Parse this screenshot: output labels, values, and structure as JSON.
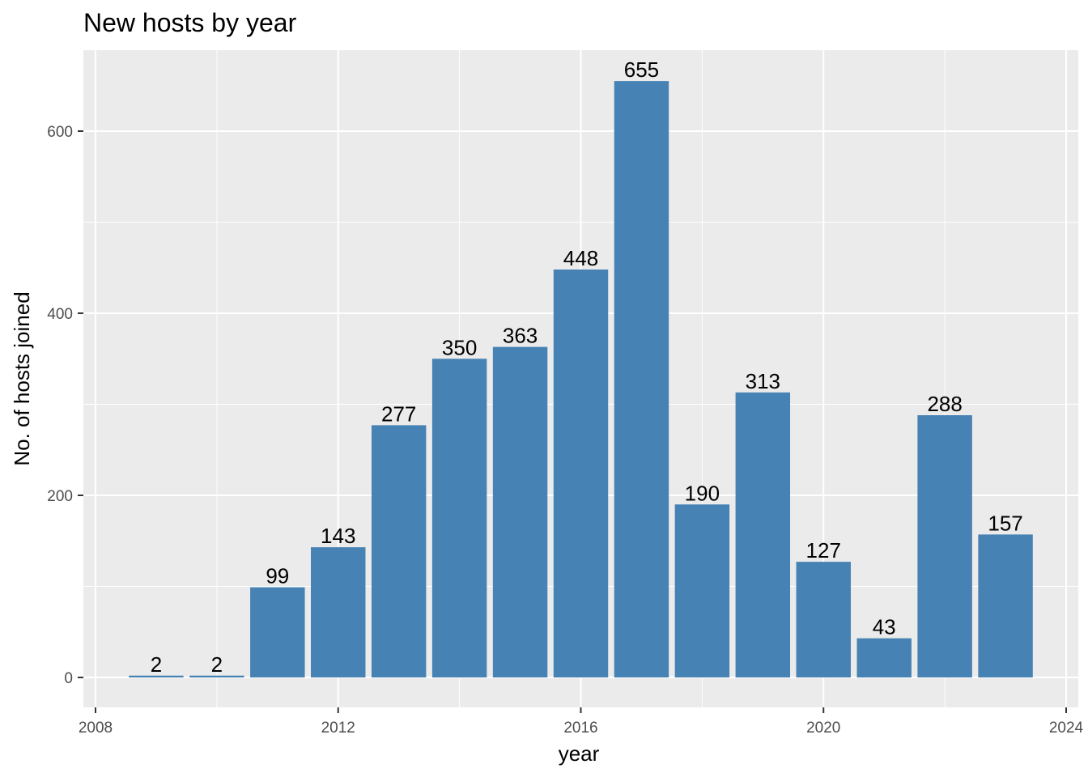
{
  "chart_data": {
    "type": "bar",
    "title": "New hosts by year",
    "xlabel": "year",
    "ylabel": "No. of hosts joined",
    "bar_color": "#4682b4",
    "panel_background": "#ebebeb",
    "grid": true,
    "xlim": [
      2008,
      2024
    ],
    "ylim": [
      0,
      680
    ],
    "x_ticks": [
      2008,
      2012,
      2016,
      2020,
      2024
    ],
    "y_ticks": [
      0,
      200,
      400,
      600
    ],
    "x": [
      2009,
      2010,
      2011,
      2012,
      2013,
      2014,
      2015,
      2016,
      2017,
      2018,
      2019,
      2020,
      2021,
      2022,
      2023
    ],
    "values": [
      2,
      2,
      99,
      143,
      277,
      350,
      363,
      448,
      655,
      190,
      313,
      127,
      43,
      288,
      157
    ]
  }
}
